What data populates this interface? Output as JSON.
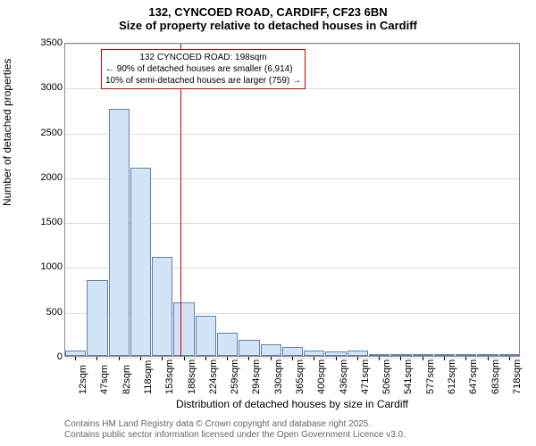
{
  "title": "132, CYNCOED ROAD, CARDIFF, CF23 6BN",
  "subtitle": "Size of property relative to detached houses in Cardiff",
  "chart": {
    "type": "histogram",
    "ylabel": "Number of detached properties",
    "xlabel": "Distribution of detached houses by size in Cardiff",
    "ylim": [
      0,
      3500
    ],
    "yticks": [
      0,
      500,
      1000,
      1500,
      2000,
      2500,
      3000,
      3500
    ],
    "bar_fill": "#d4e4f7",
    "bar_stroke": "#6080b0",
    "grid_color": "#dddddd",
    "border_color": "#888888",
    "reference_line_color": "#cc0000",
    "reference_x_value": 198,
    "categories": [
      "12sqm",
      "47sqm",
      "82sqm",
      "118sqm",
      "153sqm",
      "188sqm",
      "224sqm",
      "259sqm",
      "294sqm",
      "330sqm",
      "365sqm",
      "400sqm",
      "436sqm",
      "471sqm",
      "506sqm",
      "541sqm",
      "577sqm",
      "612sqm",
      "647sqm",
      "683sqm",
      "718sqm"
    ],
    "values": [
      60,
      850,
      2750,
      2100,
      1100,
      600,
      450,
      260,
      180,
      130,
      100,
      60,
      45,
      55,
      20,
      12,
      8,
      6,
      4,
      3,
      2
    ]
  },
  "annotation": {
    "line1": "132 CYNCOED ROAD: 198sqm",
    "line2": "← 90% of detached houses are smaller (6,914)",
    "line3": "10% of semi-detached houses are larger (759) →",
    "border_color": "#cc0000"
  },
  "footer": {
    "line1": "Contains HM Land Registry data © Crown copyright and database right 2025.",
    "line2": "Contains public sector information licensed under the Open Government Licence v3.0."
  },
  "title_fontsize": 13,
  "label_fontsize": 12,
  "tick_fontsize": 11,
  "annotation_fontsize": 10,
  "footer_fontsize": 10,
  "footer_color": "#666666",
  "background_color": "#ffffff"
}
